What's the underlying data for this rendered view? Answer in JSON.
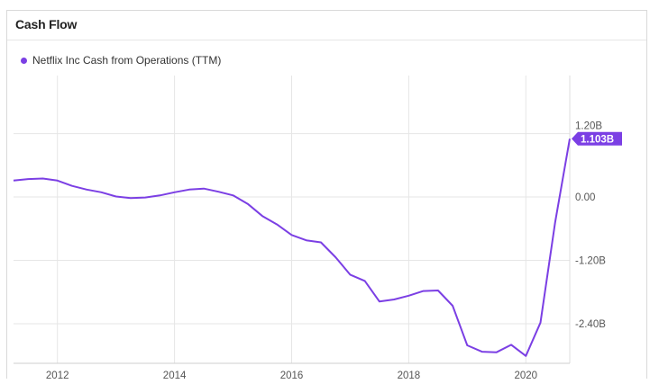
{
  "header": {
    "title": "Cash Flow"
  },
  "chart_data": {
    "type": "line",
    "title": "Cash Flow",
    "xlabel": "",
    "ylabel": "",
    "xlim": [
      2011.25,
      2020.75
    ],
    "ylim": [
      -3.15,
      2.3
    ],
    "grid": true,
    "legend_position": "top-left",
    "x_ticks": [
      2012,
      2014,
      2016,
      2018,
      2020
    ],
    "x_tick_labels": [
      "2012",
      "2014",
      "2016",
      "2018",
      "2020"
    ],
    "y_ticks": [
      1.2,
      0,
      -1.2,
      -2.4
    ],
    "y_tick_labels": [
      "1.20B",
      "0.00",
      "-1.20B",
      "-2.40B"
    ],
    "series": [
      {
        "name": "Netflix Inc Cash from Operations (TTM)",
        "color": "#7b3fe4",
        "last_value_label": "1.103B",
        "x": [
          2011.25,
          2011.5,
          2011.75,
          2012.0,
          2012.25,
          2012.5,
          2012.75,
          2013.0,
          2013.25,
          2013.5,
          2013.75,
          2014.0,
          2014.25,
          2014.5,
          2014.75,
          2015.0,
          2015.25,
          2015.5,
          2015.75,
          2016.0,
          2016.25,
          2016.5,
          2016.75,
          2017.0,
          2017.25,
          2017.5,
          2017.75,
          2018.0,
          2018.25,
          2018.5,
          2018.75,
          2019.0,
          2019.25,
          2019.5,
          2019.75,
          2020.0,
          2020.25,
          2020.5,
          2020.75
        ],
        "values": [
          0.31,
          0.34,
          0.35,
          0.31,
          0.21,
          0.14,
          0.09,
          0.01,
          -0.02,
          -0.01,
          0.03,
          0.09,
          0.14,
          0.16,
          0.1,
          0.03,
          -0.13,
          -0.36,
          -0.52,
          -0.72,
          -0.82,
          -0.86,
          -1.14,
          -1.47,
          -1.59,
          -1.98,
          -1.94,
          -1.87,
          -1.78,
          -1.77,
          -2.06,
          -2.81,
          -2.93,
          -2.94,
          -2.8,
          -3.01,
          -2.38,
          -0.48,
          1.103
        ]
      }
    ]
  }
}
